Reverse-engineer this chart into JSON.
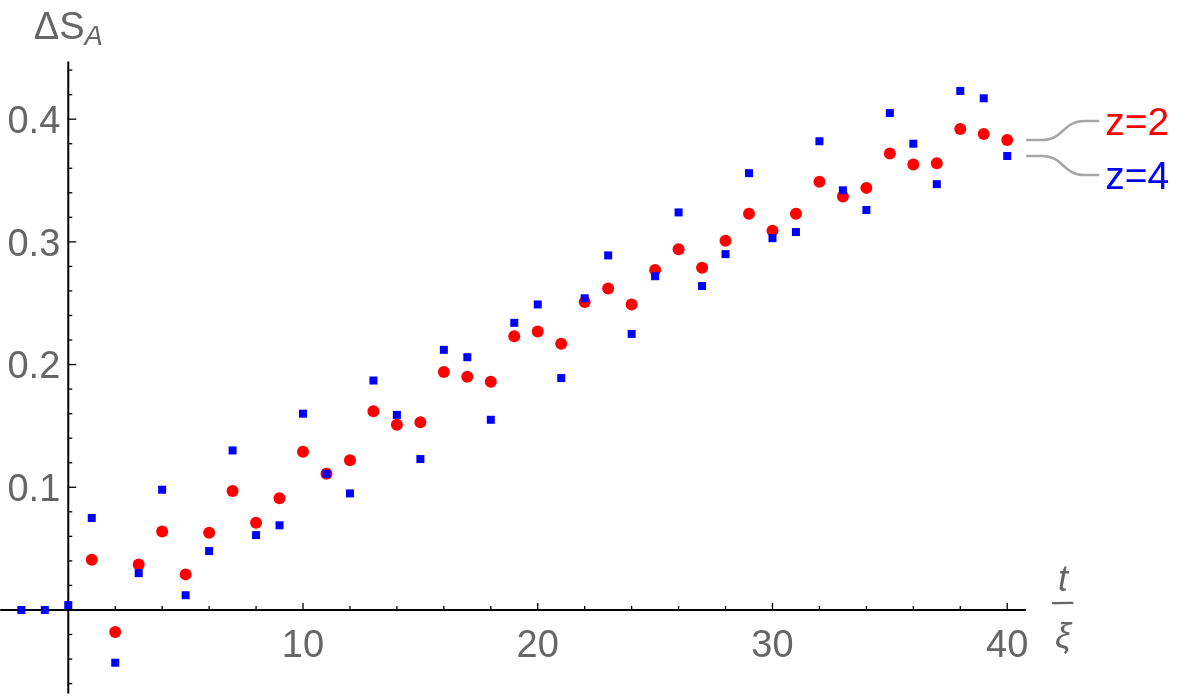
{
  "chart_data": {
    "type": "scatter",
    "xlabel": "t/ξ",
    "ylabel": "ΔS$_{A}$",
    "xlim": [
      -2.9,
      40.8
    ],
    "ylim": [
      -0.068,
      0.447
    ],
    "xticks": [
      {
        "value": 2,
        "label": null
      },
      {
        "value": 4,
        "label": null
      },
      {
        "value": 6,
        "label": null
      },
      {
        "value": 8,
        "label": null
      },
      10,
      {
        "value": 12,
        "label": null
      },
      {
        "value": 14,
        "label": null
      },
      {
        "value": 16,
        "label": null
      },
      {
        "value": 18,
        "label": null
      },
      20,
      {
        "value": 22,
        "label": null
      },
      {
        "value": 24,
        "label": null
      },
      {
        "value": 26,
        "label": null
      },
      {
        "value": 28,
        "label": null
      },
      30,
      {
        "value": 32,
        "label": null
      },
      {
        "value": 34,
        "label": null
      },
      {
        "value": 36,
        "label": null
      },
      {
        "value": 38,
        "label": null
      },
      40
    ],
    "yticks": [
      {
        "value": -0.06,
        "label": null
      },
      {
        "value": -0.04,
        "label": null
      },
      {
        "value": -0.02,
        "label": null
      },
      {
        "value": 0.02,
        "label": null
      },
      {
        "value": 0.04,
        "label": null
      },
      {
        "value": 0.06,
        "label": null
      },
      {
        "value": 0.08,
        "label": null
      },
      0.1,
      {
        "value": 0.12,
        "label": null
      },
      {
        "value": 0.14,
        "label": null
      },
      {
        "value": 0.16,
        "label": null
      },
      {
        "value": 0.18,
        "label": null
      },
      0.2,
      {
        "value": 0.22,
        "label": null
      },
      {
        "value": 0.24,
        "label": null
      },
      {
        "value": 0.26,
        "label": null
      },
      {
        "value": 0.28,
        "label": null
      },
      0.3,
      {
        "value": 0.32,
        "label": null
      },
      {
        "value": 0.34,
        "label": null
      },
      {
        "value": 0.36,
        "label": null
      },
      {
        "value": 0.38,
        "label": null
      },
      0.4,
      {
        "value": 0.42,
        "label": null
      },
      {
        "value": 0.44,
        "label": null
      }
    ],
    "series": [
      {
        "name": "z=2",
        "color": "#ff0000",
        "marker": "circle",
        "x": [
          1,
          2,
          3,
          4,
          5,
          6,
          7,
          8,
          9,
          10,
          11,
          12,
          13,
          14,
          15,
          16,
          17,
          18,
          19,
          20,
          21,
          22,
          23,
          24,
          25,
          26,
          27,
          28,
          29,
          30,
          31,
          32,
          33,
          34,
          35,
          36,
          37,
          38,
          39,
          40
        ],
        "values": [
          0.041,
          -0.018,
          0.037,
          0.064,
          0.029,
          0.063,
          0.097,
          0.071,
          0.091,
          0.129,
          0.111,
          0.122,
          0.162,
          0.151,
          0.153,
          0.194,
          0.19,
          0.186,
          0.223,
          0.227,
          0.217,
          0.251,
          0.262,
          0.249,
          0.277,
          0.294,
          0.279,
          0.301,
          0.323,
          0.309,
          0.323,
          0.349,
          0.337,
          0.344,
          0.372,
          0.363,
          0.364,
          0.392,
          0.388,
          0.383
        ]
      },
      {
        "name": "z=4",
        "color": "#0000ff",
        "marker": "square",
        "x": [
          -2,
          -1,
          0,
          1,
          2,
          3,
          4,
          5,
          6,
          7,
          8,
          9,
          10,
          11,
          12,
          13,
          14,
          15,
          16,
          17,
          18,
          19,
          20,
          21,
          22,
          23,
          24,
          25,
          26,
          27,
          28,
          29,
          30,
          31,
          32,
          33,
          34,
          35,
          36,
          37,
          38,
          39,
          40
        ],
        "values": [
          0,
          0,
          0.004,
          0.075,
          -0.043,
          0.03,
          0.098,
          0.012,
          0.048,
          0.13,
          0.061,
          0.069,
          0.16,
          0.111,
          0.095,
          0.187,
          0.159,
          0.123,
          0.212,
          0.206,
          0.155,
          0.234,
          0.249,
          0.189,
          0.254,
          0.289,
          0.225,
          0.272,
          0.324,
          0.264,
          0.29,
          0.356,
          0.303,
          0.308,
          0.382,
          0.342,
          0.326,
          0.405,
          0.38,
          0.347,
          0.423,
          0.417,
          0.37
        ]
      }
    ]
  }
}
